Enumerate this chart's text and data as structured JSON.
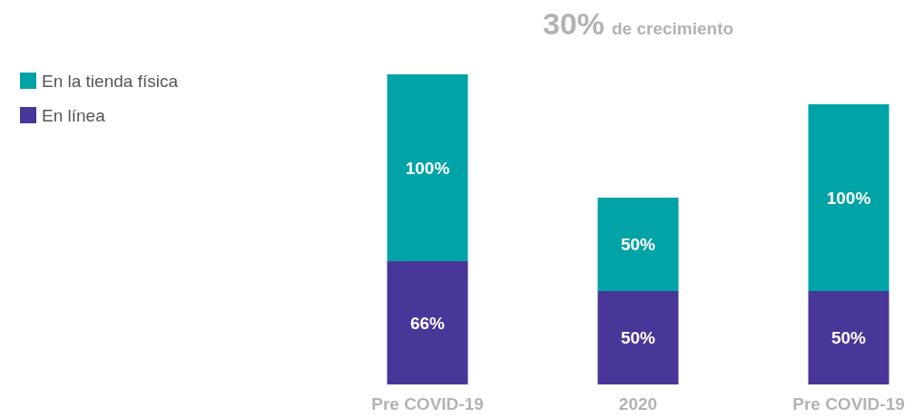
{
  "chart_data": {
    "type": "bar",
    "title": "30% de crecimiento",
    "stacked": true,
    "legend": "top left",
    "categories": [
      "Pre COVID-19",
      "2020",
      "Pre COVID-19"
    ],
    "series": [
      {
        "name": "En línea",
        "color": "#483698",
        "values": [
          66,
          50,
          50
        ],
        "value_labels": [
          "66%",
          "50%",
          "50%"
        ]
      },
      {
        "name": "En la tienda física",
        "color": "#00a3a6",
        "values": [
          100,
          50,
          100
        ],
        "value_labels": [
          "100%",
          "50%",
          "100%"
        ]
      }
    ]
  }
}
